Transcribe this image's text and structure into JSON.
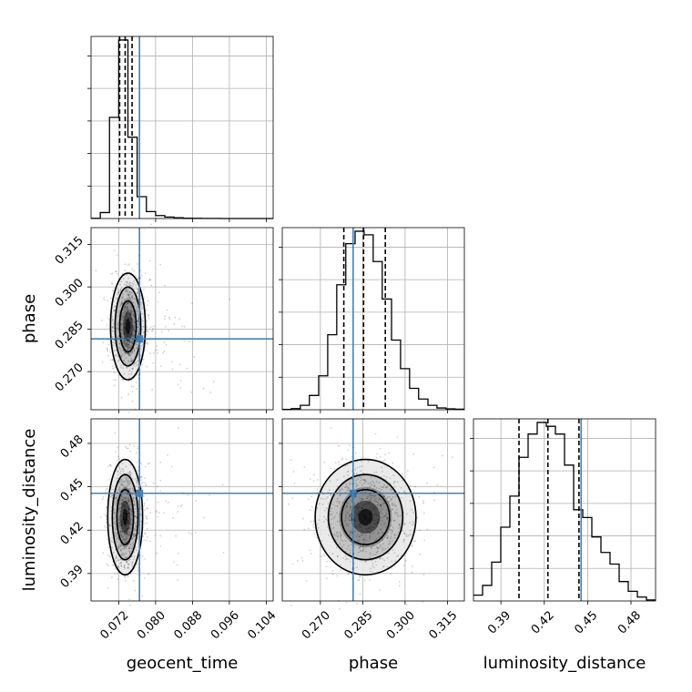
{
  "chart_data": {
    "type": "corner",
    "params": [
      "geocent_time",
      "phase",
      "luminosity_distance"
    ],
    "truths": {
      "geocent_time": 0.0765,
      "phase": 0.2816,
      "luminosity_distance": 0.4455
    },
    "truth_color": "#4682b4",
    "quantiles": {
      "geocent_time": [
        0.0722,
        0.0734,
        0.0749
      ],
      "phase": [
        0.2783,
        0.2853,
        0.293
      ],
      "luminosity_distance": [
        0.4025,
        0.4225,
        0.444
      ]
    },
    "ranges": {
      "geocent_time": [
        0.066,
        0.1055
      ],
      "phase": [
        0.2565,
        0.321
      ],
      "luminosity_distance": [
        0.371,
        0.497
      ]
    },
    "ticks": {
      "geocent_time": [
        "0.072",
        "0.080",
        "0.088",
        "0.096",
        "0.104"
      ],
      "phase": [
        "0.270",
        "0.285",
        "0.300",
        "0.315"
      ],
      "luminosity_distance": [
        "0.39",
        "0.42",
        "0.45",
        "0.48"
      ]
    },
    "hist_1d": {
      "geocent_time": {
        "bins": [
          0.066,
          0.068,
          0.07,
          0.072,
          0.074,
          0.076,
          0.078,
          0.08,
          0.082,
          0.084,
          0.086,
          0.088,
          0.09,
          0.092,
          0.094,
          0.096,
          0.098,
          0.1,
          0.102,
          0.104,
          0.1055
        ],
        "counts": [
          2,
          60,
          1020,
          1800,
          820,
          220,
          70,
          30,
          15,
          8,
          3,
          2,
          1,
          1,
          0,
          0,
          0,
          0,
          0,
          0
        ]
      },
      "phase": {
        "bins": [
          0.2565,
          0.2597,
          0.2629,
          0.2661,
          0.2694,
          0.2726,
          0.2758,
          0.279,
          0.2823,
          0.2855,
          0.2887,
          0.2919,
          0.2952,
          0.2984,
          0.3016,
          0.3048,
          0.3081,
          0.3113,
          0.3145,
          0.3177,
          0.321
        ],
        "counts": [
          2,
          6,
          25,
          80,
          190,
          420,
          700,
          930,
          1000,
          980,
          830,
          620,
          390,
          230,
          120,
          60,
          25,
          10,
          5,
          3
        ]
      },
      "luminosity_distance": {
        "bins": [
          0.371,
          0.3773,
          0.3836,
          0.3899,
          0.3962,
          0.4025,
          0.4088,
          0.4151,
          0.4214,
          0.4277,
          0.434,
          0.4403,
          0.4466,
          0.4529,
          0.4592,
          0.4655,
          0.4718,
          0.4781,
          0.4844,
          0.4907,
          0.497
        ],
        "counts": [
          30,
          80,
          200,
          380,
          540,
          740,
          860,
          920,
          900,
          860,
          700,
          470,
          430,
          330,
          250,
          190,
          100,
          50,
          20,
          5
        ]
      }
    },
    "scatter_2d": {
      "geocent_time|phase": {
        "mean": [
          0.074,
          0.286
        ],
        "spread": [
          0.0018,
          0.009
        ],
        "tail": [
          0.008,
          0.012
        ]
      },
      "geocent_time|luminosity_distance": {
        "mean": [
          0.0734,
          0.429
        ],
        "spread": [
          0.0018,
          0.019
        ],
        "tail": [
          0.008,
          0.022
        ]
      },
      "phase|luminosity_distance": {
        "mean": [
          0.286,
          0.429
        ],
        "spread": [
          0.0085,
          0.019
        ],
        "tail": [
          0.011,
          0.022
        ]
      }
    },
    "grid": true
  }
}
